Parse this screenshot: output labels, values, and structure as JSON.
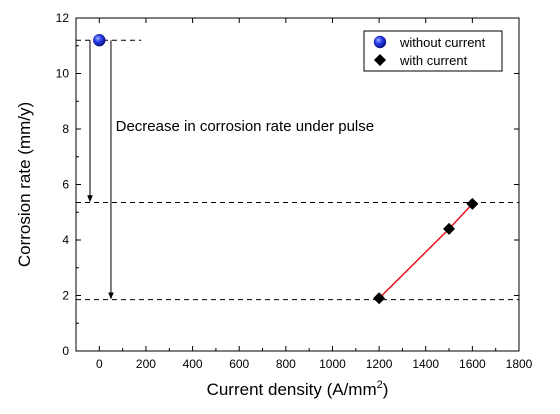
{
  "chart_data": {
    "type": "scatter",
    "xlabel": "Current density (A/mm",
    "xlabel_sup": "2",
    "xlabel_end": ")",
    "ylabel": "Corrosion rate (mm/y)",
    "xlim": [
      -100,
      1800
    ],
    "ylim": [
      0,
      12
    ],
    "xticks": [
      0,
      200,
      400,
      600,
      800,
      1000,
      1200,
      1400,
      1600,
      1800
    ],
    "yticks": [
      0,
      2,
      4,
      6,
      8,
      10,
      12
    ],
    "grid": false,
    "legend_position": "top-right",
    "series": [
      {
        "name": "without current",
        "marker": "circle",
        "color": "#1a2fd6",
        "line": false,
        "points": [
          {
            "x": 0,
            "y": 11.2
          }
        ]
      },
      {
        "name": "with current",
        "marker": "diamond",
        "color": "#000000",
        "line": true,
        "line_color": "#e8141b",
        "points": [
          {
            "x": 1200,
            "y": 1.9
          },
          {
            "x": 1500,
            "y": 4.4
          },
          {
            "x": 1600,
            "y": 5.3
          }
        ]
      }
    ],
    "reference_lines": [
      {
        "y": 11.2,
        "x_start": -100,
        "x_end": 180
      },
      {
        "y": 5.35,
        "x_start": -100,
        "x_end": 1800
      },
      {
        "y": 1.85,
        "x_start": -100,
        "x_end": 1800
      }
    ],
    "arrows": [
      {
        "x": -40,
        "y_from": 11.2,
        "y_to": 5.35
      },
      {
        "x": 50,
        "y_from": 11.2,
        "y_to": 1.85
      }
    ],
    "annotation": {
      "text": "Decrease in corrosion rate under pulse",
      "x": 70,
      "y": 8.1
    }
  }
}
